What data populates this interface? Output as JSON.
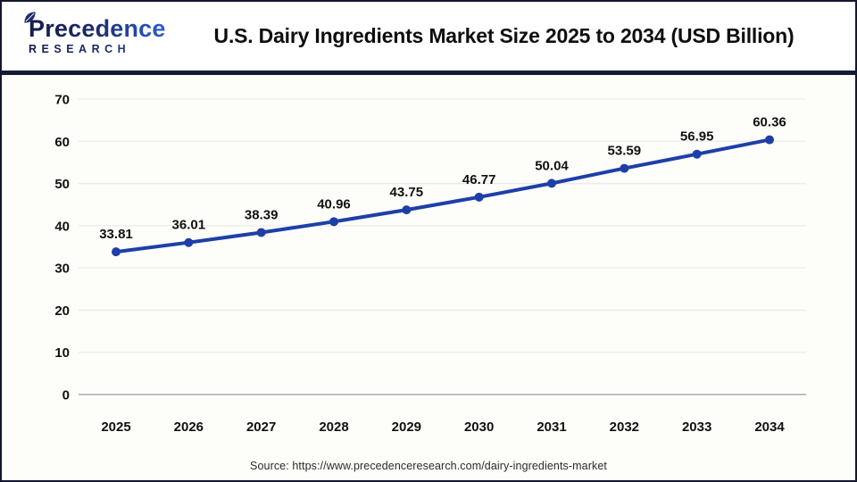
{
  "header": {
    "logo_line1": "Precedence",
    "logo_line2": "RESEARCH",
    "title": "U.S. Dairy Ingredients Market Size 2025 to 2034 (USD Billion)"
  },
  "footer": {
    "source": "Source: https://www.precedenceresearch.com/dairy-ingredients-market"
  },
  "colors": {
    "line": "#1e3fa8",
    "marker": "#1e3fa8",
    "grid": "#ebebeb",
    "axis_line": "#bfbfbf",
    "label_text": "#111111",
    "separator": "#131b38",
    "panel_bg": "#fdfdfa",
    "logo_dark": "#141c4e",
    "logo_blue": "#2f62d8"
  },
  "chart_data": {
    "type": "line",
    "title": "U.S. Dairy Ingredients Market Size 2025 to 2034 (USD Billion)",
    "categories": [
      "2025",
      "2026",
      "2027",
      "2028",
      "2029",
      "2030",
      "2031",
      "2032",
      "2033",
      "2034"
    ],
    "values": [
      33.81,
      36.01,
      38.39,
      40.96,
      43.75,
      46.77,
      50.04,
      53.59,
      56.95,
      60.36
    ],
    "series_name": "U.S. Dairy Ingredients Market Size (USD Billion)",
    "xlabel": "",
    "ylabel": "",
    "ylim": [
      0,
      70
    ],
    "yticks": [
      0,
      10,
      20,
      30,
      40,
      50,
      60,
      70
    ],
    "grid": true,
    "legend": "none",
    "data_labels": true,
    "data_label_decimals": 2
  }
}
